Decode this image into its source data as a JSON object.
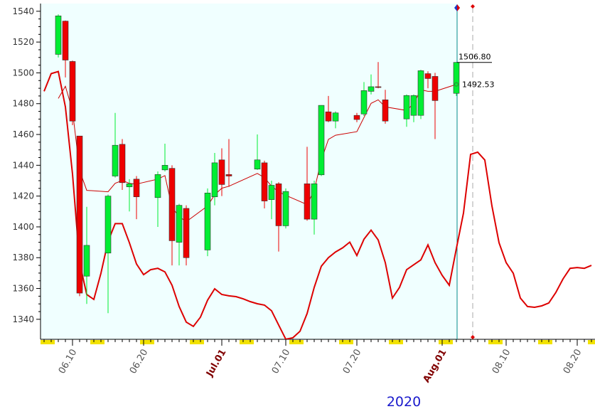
{
  "chart_data": {
    "type": "candlestick",
    "xlabel": "2020",
    "xlim": [
      "2020-06-06",
      "2020-08-22"
    ],
    "xticks": [
      {
        "value": "2020-06-10",
        "label": "06.10"
      },
      {
        "value": "2020-06-20",
        "label": "06.20"
      },
      {
        "value": "2020-07-01",
        "label": "Jul.01"
      },
      {
        "value": "2020-07-10",
        "label": "07.10"
      },
      {
        "value": "2020-07-20",
        "label": "07.20"
      },
      {
        "value": "2020-08-01",
        "label": "Aug.01"
      },
      {
        "value": "2020-08-10",
        "label": "08.10"
      },
      {
        "value": "2020-08-20",
        "label": "08.20"
      }
    ],
    "ylim": [
      1327,
      1545
    ],
    "yticks": [
      1340,
      1360,
      1380,
      1400,
      1420,
      1440,
      1460,
      1480,
      1500,
      1520,
      1540
    ],
    "up_color": "#00ee33",
    "down_color": "#ee0000",
    "x": [
      "2020-06-08",
      "2020-06-09",
      "2020-06-10",
      "2020-06-11",
      "2020-06-12",
      "2020-06-15",
      "2020-06-16",
      "2020-06-17",
      "2020-06-18",
      "2020-06-19",
      "2020-06-22",
      "2020-06-23",
      "2020-06-24",
      "2020-06-25",
      "2020-06-26",
      "2020-06-29",
      "2020-06-30",
      "2020-07-01",
      "2020-07-02",
      "2020-07-06",
      "2020-07-07",
      "2020-07-08",
      "2020-07-09",
      "2020-07-10",
      "2020-07-13",
      "2020-07-14",
      "2020-07-15",
      "2020-07-16",
      "2020-07-17",
      "2020-07-20",
      "2020-07-21",
      "2020-07-22",
      "2020-07-23",
      "2020-07-24",
      "2020-07-27",
      "2020-07-28",
      "2020-07-29",
      "2020-07-30",
      "2020-07-31",
      "2020-08-03"
    ],
    "open": [
      1512,
      1533.6,
      1507.4,
      1459,
      1368,
      1383,
      1433,
      1453.6,
      1426,
      1431,
      1419,
      1437,
      1438,
      1390,
      1412,
      1385,
      1419.5,
      1443.5,
      1434,
      1437.5,
      1441.6,
      1417.7,
      1428,
      1400.7,
      1428,
      1405,
      1433.8,
      1474.7,
      1468.7,
      1472.4,
      1473.3,
      1488,
      1491,
      1482.5,
      1470.1,
      1472.4,
      1472.4,
      1499.5,
      1497.7,
      1486.7
    ],
    "high": [
      1538,
      1534,
      1508,
      1459,
      1413,
      1421,
      1474,
      1457,
      1431,
      1433,
      1436,
      1454,
      1440,
      1415,
      1414,
      1425,
      1448,
      1451,
      1457,
      1460,
      1443,
      1430,
      1429,
      1425,
      1452,
      1430,
      1479,
      1485,
      1475,
      1474,
      1494,
      1499,
      1507,
      1489,
      1486,
      1486,
      1502,
      1501,
      1500,
      1507
    ],
    "low": [
      1510,
      1497,
      1466,
      1355,
      1350,
      1344,
      1432,
      1424,
      1410,
      1405,
      1400,
      1436,
      1375,
      1375,
      1375,
      1381,
      1414,
      1420,
      1426,
      1437,
      1412,
      1405,
      1384,
      1399,
      1404,
      1395,
      1433,
      1468,
      1464,
      1468,
      1472,
      1486,
      1490,
      1467,
      1465,
      1468,
      1470,
      1490,
      1457,
      1485
    ],
    "close": [
      1537,
      1508.3,
      1468.7,
      1357,
      1388,
      1420,
      1453,
      1428.7,
      1428,
      1419.5,
      1434,
      1440,
      1391,
      1414,
      1380,
      1422,
      1441.6,
      1427.5,
      1433,
      1443.5,
      1416.8,
      1427,
      1400.7,
      1423,
      1405,
      1428,
      1478.9,
      1468.7,
      1474,
      1469.7,
      1488.5,
      1491,
      1490.5,
      1468.7,
      1485.3,
      1485.3,
      1501.4,
      1496.3,
      1482,
      1506.8
    ],
    "series": [
      {
        "color": "#cc0000",
        "width": 1,
        "x": [
          "2020-06-08",
          "2020-06-09",
          "2020-06-10",
          "2020-06-11",
          "2020-06-12",
          "2020-06-15",
          "2020-06-16",
          "2020-06-17",
          "2020-06-18",
          "2020-06-19",
          "2020-06-22",
          "2020-06-23",
          "2020-06-24",
          "2020-06-25",
          "2020-06-26",
          "2020-06-29",
          "2020-06-30",
          "2020-07-01",
          "2020-07-02",
          "2020-07-06",
          "2020-07-07",
          "2020-07-08",
          "2020-07-09",
          "2020-07-10",
          "2020-07-13",
          "2020-07-14",
          "2020-07-15",
          "2020-07-16",
          "2020-07-17",
          "2020-07-20",
          "2020-07-21",
          "2020-07-22",
          "2020-07-23",
          "2020-07-24",
          "2020-07-27",
          "2020-07-28",
          "2020-07-29",
          "2020-07-30",
          "2020-07-31",
          "2020-08-03"
        ],
        "values": [
          1483.4,
          1491.3,
          1475.6,
          1436.6,
          1423.7,
          1422.8,
          1428.3,
          1430.1,
          1428.3,
          1427.8,
          1431.0,
          1433.3,
          1412.6,
          1406.7,
          1403.4,
          1413.6,
          1420.9,
          1425.1,
          1426.4,
          1434.7,
          1432.0,
          1426.4,
          1422.8,
          1420.5,
          1414.5,
          1423.7,
          1443.4,
          1456.8,
          1459.5,
          1461.8,
          1471.0,
          1480.2,
          1482.5,
          1477.9,
          1475.6,
          1480.2,
          1489.0,
          1488.0,
          1488.0,
          1492.53
        ]
      },
      {
        "color": "#dd0000",
        "width": 2,
        "x": [
          "2020-06-06",
          "2020-06-07",
          "2020-06-08",
          "2020-06-09",
          "2020-06-10",
          "2020-06-11",
          "2020-06-12",
          "2020-06-13",
          "2020-06-14",
          "2020-06-15",
          "2020-06-16",
          "2020-06-17",
          "2020-06-18",
          "2020-06-19",
          "2020-06-20",
          "2020-06-21",
          "2020-06-22",
          "2020-06-23",
          "2020-06-24",
          "2020-06-25",
          "2020-06-26",
          "2020-06-27",
          "2020-06-28",
          "2020-06-29",
          "2020-06-30",
          "2020-07-01",
          "2020-07-02",
          "2020-07-03",
          "2020-07-04",
          "2020-07-05",
          "2020-07-06",
          "2020-07-07",
          "2020-07-08",
          "2020-07-09",
          "2020-07-10",
          "2020-07-11",
          "2020-07-12",
          "2020-07-13",
          "2020-07-14",
          "2020-07-15",
          "2020-07-16",
          "2020-07-17",
          "2020-07-18",
          "2020-07-19",
          "2020-07-20",
          "2020-07-21",
          "2020-07-22",
          "2020-07-23",
          "2020-07-24",
          "2020-07-25",
          "2020-07-26",
          "2020-07-27",
          "2020-07-28",
          "2020-07-29",
          "2020-07-30",
          "2020-07-31",
          "2020-08-01",
          "2020-08-02",
          "2020-08-03",
          "2020-08-04",
          "2020-08-05",
          "2020-08-06",
          "2020-08-07",
          "2020-08-08",
          "2020-08-09",
          "2020-08-10",
          "2020-08-11",
          "2020-08-12",
          "2020-08-13",
          "2020-08-14",
          "2020-08-15",
          "2020-08-16",
          "2020-08-17",
          "2020-08-18",
          "2020-08-19",
          "2020-08-20",
          "2020-08-21",
          "2020-08-22"
        ],
        "values": [
          1488.0,
          1499.5,
          1500.9,
          1477.9,
          1434.3,
          1376.8,
          1356.1,
          1352.9,
          1369.9,
          1390.6,
          1402.1,
          1402.1,
          1389.7,
          1375.9,
          1369.0,
          1372.2,
          1373.1,
          1370.8,
          1362.1,
          1348.3,
          1338.2,
          1335.4,
          1341.4,
          1352.4,
          1359.8,
          1356.1,
          1355.2,
          1354.7,
          1353.3,
          1351.5,
          1350.1,
          1349.2,
          1345.5,
          1336.3,
          1327.1,
          1328.0,
          1332.2,
          1343.7,
          1360.7,
          1374.5,
          1380.0,
          1383.7,
          1386.4,
          1390.1,
          1381.4,
          1392.0,
          1397.9,
          1391.5,
          1376.8,
          1353.8,
          1360.7,
          1372.2,
          1375.4,
          1378.6,
          1388.3,
          1376.8,
          1368.5,
          1362.1,
          1386.0,
          1409.0,
          1447.1,
          1448.5,
          1443.4,
          1413.6,
          1389.7,
          1376.8,
          1369.9,
          1353.8,
          1348.3,
          1347.8,
          1348.7,
          1350.6,
          1357.5,
          1366.2,
          1373.1,
          1373.6,
          1373.1,
          1375.0
        ]
      }
    ],
    "annotations": [
      {
        "x": "2020-08-03",
        "value": 1506.8,
        "label": "1506.80"
      },
      {
        "x": "2020-08-03",
        "value": 1492.53,
        "label": "1492.53"
      }
    ]
  }
}
